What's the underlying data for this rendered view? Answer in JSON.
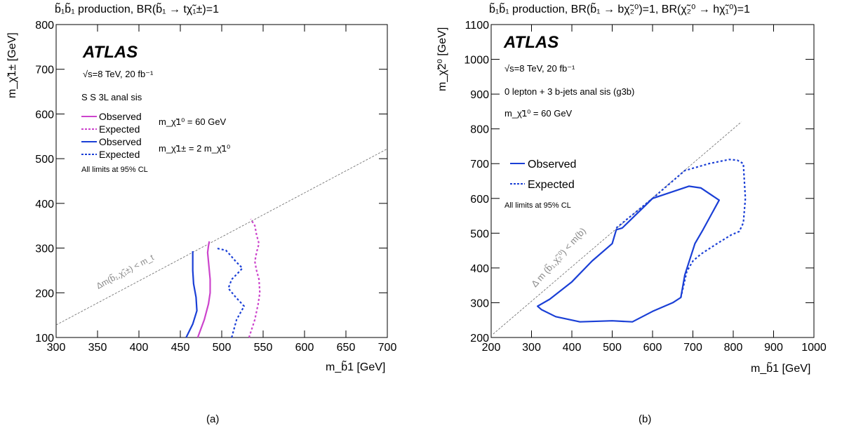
{
  "figure": {
    "panel_labels": [
      "(a)",
      "(b)"
    ]
  },
  "chart_data": [
    {
      "type": "line",
      "panel": "(a)",
      "title": "b̃₁b̃₁ production, BR(b̃₁ → tχ̃₁±)=1",
      "xlabel": "m_b̃1 [GeV]",
      "ylabel": "m_χ̃1± [GeV]",
      "xlim": [
        300,
        700
      ],
      "ylim": [
        100,
        800
      ],
      "x_ticks": [
        "300",
        "350",
        "400",
        "450",
        "500",
        "550",
        "600",
        "650",
        "700"
      ],
      "y_ticks": [
        "100",
        "200",
        "300",
        "400",
        "500",
        "600",
        "700",
        "800"
      ],
      "grid": false,
      "legend_position": "top-left",
      "texts": {
        "atlas": "ATLAS",
        "energy": "√s=8 TeV, 20 fb⁻¹",
        "analysis": "S  S 3L anal sis",
        "mass1": "m_χ̃1⁰ = 60 GeV",
        "mass2": "m_χ̃1± = 2 m_χ̃1⁰",
        "cl_note": "All limits at 95% CL",
        "kin_label": "Δm(b̃₁,χ̃₁±) < m_t"
      },
      "kinematic_line": {
        "x": [
          300,
          700
        ],
        "y": [
          128,
          522
        ]
      },
      "series": [
        {
          "name": "Observed",
          "color": "#cc44cc",
          "style": "solid",
          "x": [
            471,
            479,
            484,
            486,
            486,
            485,
            484,
            483,
            484,
            485
          ],
          "y": [
            100,
            140,
            175,
            200,
            230,
            250,
            270,
            290,
            305,
            315
          ]
        },
        {
          "name": "Expected",
          "color": "#cc44cc",
          "style": "dotted",
          "x": [
            533,
            540,
            544,
            546,
            545,
            542,
            540,
            542,
            545,
            542,
            540,
            535
          ],
          "y": [
            100,
            140,
            175,
            200,
            230,
            250,
            270,
            290,
            310,
            330,
            350,
            365
          ]
        },
        {
          "name": "Observed",
          "color": "#1a3fd6",
          "style": "solid",
          "x": [
            457,
            465,
            470,
            469,
            466,
            465,
            465,
            465
          ],
          "y": [
            100,
            130,
            160,
            190,
            220,
            250,
            275,
            293
          ]
        },
        {
          "name": "Expected",
          "color": "#1a3fd6",
          "style": "dotted",
          "x": [
            512,
            518,
            527,
            517,
            508,
            512,
            520,
            525,
            517,
            510,
            505,
            493
          ],
          "y": [
            100,
            140,
            170,
            190,
            210,
            230,
            245,
            255,
            270,
            285,
            295,
            300
          ]
        }
      ]
    },
    {
      "type": "line",
      "panel": "(b)",
      "title": "b̃₁b̃₁ production, BR(b̃₁ → bχ̃₂⁰)=1, BR(χ̃₂⁰ → hχ̃₁⁰)=1",
      "xlabel": "m_b̃1 [GeV]",
      "ylabel": "m_χ̃2⁰ [GeV]",
      "xlim": [
        200,
        1000
      ],
      "ylim": [
        200,
        1100
      ],
      "x_ticks": [
        "200",
        "300",
        "400",
        "500",
        "600",
        "700",
        "800",
        "900",
        "1000"
      ],
      "y_ticks": [
        "200",
        "300",
        "400",
        "500",
        "600",
        "700",
        "800",
        "900",
        "1000",
        "1100"
      ],
      "grid": false,
      "legend_position": "middle-left",
      "texts": {
        "atlas": "ATLAS",
        "energy": "√s=8 TeV, 20 fb⁻¹",
        "analysis": "0 lepton + 3 b-jets anal  sis (g3b)",
        "mass1": "m_χ̃1⁰ = 60 GeV",
        "cl_note": "All limits at 95% CL",
        "kin_label": "Δ m (b̃₁,χ̃₂⁰) < m(b)"
      },
      "kinematic_line": {
        "x": [
          205,
          820
        ],
        "y": [
          210,
          820
        ]
      },
      "series": [
        {
          "name": "Observed",
          "color": "#1a3fd6",
          "style": "solid",
          "closed": true,
          "x": [
            315,
            345,
            400,
            450,
            500,
            510,
            525,
            600,
            690,
            720,
            765,
            725,
            705,
            680,
            670,
            650,
            600,
            550,
            500,
            420,
            360,
            325,
            315
          ],
          "y": [
            290,
            310,
            360,
            420,
            470,
            510,
            515,
            600,
            635,
            630,
            595,
            510,
            470,
            380,
            315,
            300,
            275,
            245,
            248,
            245,
            260,
            280,
            290
          ]
        },
        {
          "name": "Expected",
          "color": "#1a3fd6",
          "style": "dotted",
          "closed": false,
          "x": [
            510,
            600,
            680,
            740,
            790,
            810,
            825,
            830,
            825,
            815,
            795,
            760,
            720,
            700,
            685,
            670
          ],
          "y": [
            515,
            600,
            680,
            700,
            712,
            710,
            700,
            600,
            530,
            505,
            495,
            470,
            440,
            420,
            390,
            315
          ]
        }
      ]
    }
  ]
}
